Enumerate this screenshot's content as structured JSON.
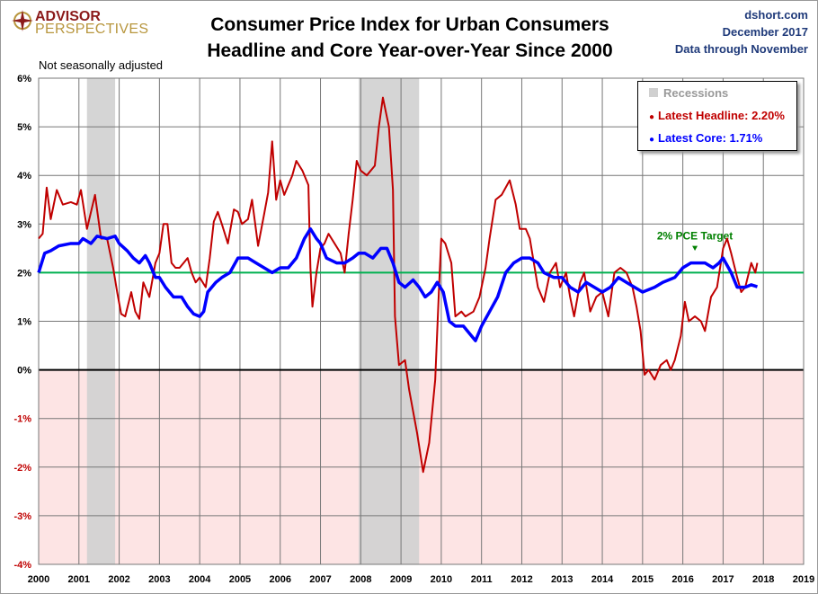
{
  "logo": {
    "line1": "ADVISOR",
    "line2": "PERSPECTIVES"
  },
  "header": {
    "title_line1": "Consumer Price Index for Urban Consumers",
    "title_line2": "Headline and Core Year-over-Year Since 2000",
    "source": "dshort.com",
    "date": "December 2017",
    "data_through": "Data through November"
  },
  "note": "Not seasonally adjusted",
  "legend": {
    "recessions": "Recessions",
    "headline": "Latest Headline:  2.20%",
    "core": "Latest Core:  1.71%"
  },
  "colors": {
    "headline": "#c00000",
    "core": "#0000ff",
    "target": "#00b050",
    "recession": "#d0d0d0",
    "negative_zone": "#fde4e4"
  },
  "chart_data": {
    "type": "line",
    "title": "Consumer Price Index for Urban Consumers Headline and Core Year-over-Year Since 2000",
    "xlim": [
      2000,
      2019
    ],
    "ylim": [
      -4,
      6
    ],
    "grid": true,
    "legend_placement": "top-right",
    "x_ticks": [
      "2000",
      "2001",
      "2002",
      "2003",
      "2004",
      "2005",
      "2006",
      "2007",
      "2008",
      "2009",
      "2010",
      "2011",
      "2012",
      "2013",
      "2014",
      "2015",
      "2016",
      "2017",
      "2018",
      "2019"
    ],
    "y_ticks": [
      "6%",
      "5%",
      "4%",
      "3%",
      "2%",
      "1%",
      "0%",
      "-1%",
      "-2%",
      "-3%",
      "-4%"
    ],
    "target": {
      "value": 2,
      "label": "2% PCE Target"
    },
    "recessions": [
      [
        2001.2,
        2001.9
      ],
      [
        2007.95,
        2009.45
      ]
    ],
    "series": [
      {
        "name": "Headline",
        "points": [
          [
            2000.0,
            2.7
          ],
          [
            2000.1,
            2.8
          ],
          [
            2000.2,
            3.75
          ],
          [
            2000.3,
            3.1
          ],
          [
            2000.45,
            3.7
          ],
          [
            2000.6,
            3.4
          ],
          [
            2000.8,
            3.45
          ],
          [
            2000.95,
            3.4
          ],
          [
            2001.05,
            3.7
          ],
          [
            2001.2,
            2.9
          ],
          [
            2001.4,
            3.6
          ],
          [
            2001.55,
            2.7
          ],
          [
            2001.7,
            2.7
          ],
          [
            2001.85,
            2.1
          ],
          [
            2001.95,
            1.6
          ],
          [
            2002.05,
            1.15
          ],
          [
            2002.15,
            1.1
          ],
          [
            2002.3,
            1.6
          ],
          [
            2002.4,
            1.2
          ],
          [
            2002.5,
            1.05
          ],
          [
            2002.6,
            1.8
          ],
          [
            2002.75,
            1.5
          ],
          [
            2002.9,
            2.2
          ],
          [
            2003.0,
            2.4
          ],
          [
            2003.1,
            3.0
          ],
          [
            2003.2,
            3.0
          ],
          [
            2003.3,
            2.2
          ],
          [
            2003.4,
            2.1
          ],
          [
            2003.5,
            2.1
          ],
          [
            2003.6,
            2.2
          ],
          [
            2003.7,
            2.3
          ],
          [
            2003.8,
            2.0
          ],
          [
            2003.9,
            1.8
          ],
          [
            2004.0,
            1.9
          ],
          [
            2004.15,
            1.7
          ],
          [
            2004.25,
            2.3
          ],
          [
            2004.35,
            3.05
          ],
          [
            2004.45,
            3.25
          ],
          [
            2004.55,
            3.0
          ],
          [
            2004.7,
            2.6
          ],
          [
            2004.85,
            3.3
          ],
          [
            2004.95,
            3.25
          ],
          [
            2005.05,
            3.0
          ],
          [
            2005.2,
            3.1
          ],
          [
            2005.3,
            3.5
          ],
          [
            2005.45,
            2.55
          ],
          [
            2005.6,
            3.2
          ],
          [
            2005.7,
            3.65
          ],
          [
            2005.8,
            4.7
          ],
          [
            2005.9,
            3.5
          ],
          [
            2006.0,
            3.9
          ],
          [
            2006.1,
            3.6
          ],
          [
            2006.3,
            4.0
          ],
          [
            2006.4,
            4.3
          ],
          [
            2006.55,
            4.1
          ],
          [
            2006.7,
            3.8
          ],
          [
            2006.75,
            2.1
          ],
          [
            2006.8,
            1.3
          ],
          [
            2006.9,
            2.0
          ],
          [
            2007.0,
            2.5
          ],
          [
            2007.1,
            2.6
          ],
          [
            2007.2,
            2.8
          ],
          [
            2007.35,
            2.6
          ],
          [
            2007.5,
            2.4
          ],
          [
            2007.6,
            2.0
          ],
          [
            2007.7,
            2.8
          ],
          [
            2007.8,
            3.5
          ],
          [
            2007.9,
            4.3
          ],
          [
            2008.0,
            4.1
          ],
          [
            2008.15,
            4.0
          ],
          [
            2008.35,
            4.2
          ],
          [
            2008.45,
            5.0
          ],
          [
            2008.55,
            5.6
          ],
          [
            2008.7,
            5.0
          ],
          [
            2008.8,
            3.7
          ],
          [
            2008.85,
            1.1
          ],
          [
            2008.95,
            0.1
          ],
          [
            2009.1,
            0.2
          ],
          [
            2009.2,
            -0.4
          ],
          [
            2009.4,
            -1.3
          ],
          [
            2009.55,
            -2.1
          ],
          [
            2009.7,
            -1.5
          ],
          [
            2009.85,
            -0.2
          ],
          [
            2009.95,
            1.8
          ],
          [
            2010.0,
            2.7
          ],
          [
            2010.1,
            2.6
          ],
          [
            2010.25,
            2.2
          ],
          [
            2010.35,
            1.1
          ],
          [
            2010.5,
            1.2
          ],
          [
            2010.6,
            1.1
          ],
          [
            2010.8,
            1.2
          ],
          [
            2010.95,
            1.5
          ],
          [
            2011.1,
            2.1
          ],
          [
            2011.2,
            2.7
          ],
          [
            2011.35,
            3.5
          ],
          [
            2011.5,
            3.6
          ],
          [
            2011.7,
            3.9
          ],
          [
            2011.85,
            3.4
          ],
          [
            2011.95,
            2.9
          ],
          [
            2012.1,
            2.9
          ],
          [
            2012.2,
            2.7
          ],
          [
            2012.4,
            1.7
          ],
          [
            2012.55,
            1.4
          ],
          [
            2012.7,
            2.0
          ],
          [
            2012.85,
            2.2
          ],
          [
            2012.95,
            1.7
          ],
          [
            2013.1,
            2.0
          ],
          [
            2013.2,
            1.5
          ],
          [
            2013.3,
            1.1
          ],
          [
            2013.45,
            1.8
          ],
          [
            2013.55,
            2.0
          ],
          [
            2013.7,
            1.2
          ],
          [
            2013.85,
            1.5
          ],
          [
            2014.0,
            1.6
          ],
          [
            2014.15,
            1.1
          ],
          [
            2014.3,
            2.0
          ],
          [
            2014.45,
            2.1
          ],
          [
            2014.6,
            2.0
          ],
          [
            2014.75,
            1.7
          ],
          [
            2014.85,
            1.3
          ],
          [
            2014.95,
            0.8
          ],
          [
            2015.05,
            -0.1
          ],
          [
            2015.15,
            0.0
          ],
          [
            2015.3,
            -0.2
          ],
          [
            2015.45,
            0.1
          ],
          [
            2015.6,
            0.2
          ],
          [
            2015.7,
            0.0
          ],
          [
            2015.8,
            0.2
          ],
          [
            2015.95,
            0.7
          ],
          [
            2016.05,
            1.4
          ],
          [
            2016.15,
            1.0
          ],
          [
            2016.3,
            1.1
          ],
          [
            2016.45,
            1.0
          ],
          [
            2016.55,
            0.8
          ],
          [
            2016.7,
            1.5
          ],
          [
            2016.85,
            1.7
          ],
          [
            2017.0,
            2.5
          ],
          [
            2017.1,
            2.7
          ],
          [
            2017.2,
            2.4
          ],
          [
            2017.35,
            1.9
          ],
          [
            2017.45,
            1.6
          ],
          [
            2017.55,
            1.7
          ],
          [
            2017.7,
            2.2
          ],
          [
            2017.8,
            2.0
          ],
          [
            2017.85,
            2.2
          ]
        ]
      },
      {
        "name": "Core",
        "points": [
          [
            2000.0,
            2.0
          ],
          [
            2000.15,
            2.4
          ],
          [
            2000.3,
            2.45
          ],
          [
            2000.5,
            2.55
          ],
          [
            2000.8,
            2.6
          ],
          [
            2001.0,
            2.6
          ],
          [
            2001.1,
            2.7
          ],
          [
            2001.3,
            2.6
          ],
          [
            2001.45,
            2.75
          ],
          [
            2001.7,
            2.7
          ],
          [
            2001.9,
            2.75
          ],
          [
            2002.0,
            2.6
          ],
          [
            2002.2,
            2.45
          ],
          [
            2002.35,
            2.3
          ],
          [
            2002.5,
            2.2
          ],
          [
            2002.65,
            2.35
          ],
          [
            2002.75,
            2.2
          ],
          [
            2002.9,
            1.9
          ],
          [
            2003.0,
            1.9
          ],
          [
            2003.15,
            1.7
          ],
          [
            2003.35,
            1.5
          ],
          [
            2003.55,
            1.5
          ],
          [
            2003.7,
            1.3
          ],
          [
            2003.85,
            1.15
          ],
          [
            2004.0,
            1.1
          ],
          [
            2004.1,
            1.2
          ],
          [
            2004.2,
            1.6
          ],
          [
            2004.4,
            1.8
          ],
          [
            2004.55,
            1.9
          ],
          [
            2004.75,
            2.0
          ],
          [
            2004.95,
            2.3
          ],
          [
            2005.2,
            2.3
          ],
          [
            2005.4,
            2.2
          ],
          [
            2005.6,
            2.1
          ],
          [
            2005.8,
            2.0
          ],
          [
            2006.0,
            2.1
          ],
          [
            2006.2,
            2.1
          ],
          [
            2006.4,
            2.3
          ],
          [
            2006.6,
            2.7
          ],
          [
            2006.75,
            2.9
          ],
          [
            2006.9,
            2.7
          ],
          [
            2007.0,
            2.6
          ],
          [
            2007.15,
            2.3
          ],
          [
            2007.4,
            2.2
          ],
          [
            2007.6,
            2.2
          ],
          [
            2007.8,
            2.3
          ],
          [
            2007.95,
            2.4
          ],
          [
            2008.1,
            2.4
          ],
          [
            2008.3,
            2.3
          ],
          [
            2008.5,
            2.5
          ],
          [
            2008.65,
            2.5
          ],
          [
            2008.8,
            2.2
          ],
          [
            2008.95,
            1.8
          ],
          [
            2009.1,
            1.7
          ],
          [
            2009.3,
            1.85
          ],
          [
            2009.45,
            1.7
          ],
          [
            2009.6,
            1.5
          ],
          [
            2009.75,
            1.6
          ],
          [
            2009.9,
            1.8
          ],
          [
            2010.05,
            1.6
          ],
          [
            2010.2,
            1.0
          ],
          [
            2010.35,
            0.9
          ],
          [
            2010.55,
            0.9
          ],
          [
            2010.75,
            0.7
          ],
          [
            2010.85,
            0.6
          ],
          [
            2011.0,
            0.9
          ],
          [
            2011.2,
            1.2
          ],
          [
            2011.4,
            1.5
          ],
          [
            2011.6,
            2.0
          ],
          [
            2011.8,
            2.2
          ],
          [
            2012.0,
            2.3
          ],
          [
            2012.2,
            2.3
          ],
          [
            2012.4,
            2.2
          ],
          [
            2012.55,
            2.0
          ],
          [
            2012.8,
            1.9
          ],
          [
            2013.0,
            1.9
          ],
          [
            2013.2,
            1.7
          ],
          [
            2013.4,
            1.6
          ],
          [
            2013.6,
            1.8
          ],
          [
            2013.8,
            1.7
          ],
          [
            2014.0,
            1.6
          ],
          [
            2014.2,
            1.7
          ],
          [
            2014.4,
            1.9
          ],
          [
            2014.6,
            1.8
          ],
          [
            2014.8,
            1.7
          ],
          [
            2015.0,
            1.6
          ],
          [
            2015.3,
            1.7
          ],
          [
            2015.5,
            1.8
          ],
          [
            2015.8,
            1.9
          ],
          [
            2016.0,
            2.1
          ],
          [
            2016.2,
            2.2
          ],
          [
            2016.35,
            2.2
          ],
          [
            2016.55,
            2.2
          ],
          [
            2016.75,
            2.1
          ],
          [
            2016.9,
            2.2
          ],
          [
            2017.0,
            2.3
          ],
          [
            2017.2,
            2.0
          ],
          [
            2017.35,
            1.7
          ],
          [
            2017.55,
            1.7
          ],
          [
            2017.7,
            1.75
          ],
          [
            2017.85,
            1.71
          ]
        ]
      }
    ]
  }
}
